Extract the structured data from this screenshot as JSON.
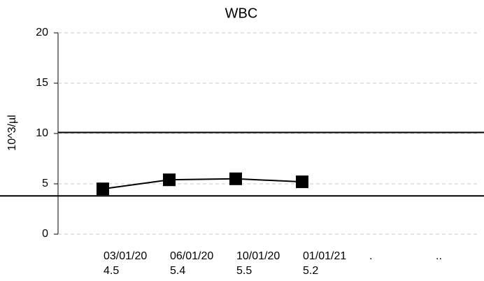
{
  "chart_data": {
    "type": "line",
    "title": "WBC",
    "y_label": "10^3/µl",
    "categories": [
      "03/01/20",
      "06/01/20",
      "10/01/20",
      "01/01/21",
      ".",
      ".."
    ],
    "values": [
      4.5,
      5.4,
      5.5,
      5.2,
      null,
      null
    ],
    "color": "#000000",
    "ylim": [
      0,
      20
    ],
    "yticks": [
      0,
      5,
      10,
      15,
      20
    ],
    "grid": true,
    "reference_lines": [
      10.1,
      3.8
    ]
  }
}
